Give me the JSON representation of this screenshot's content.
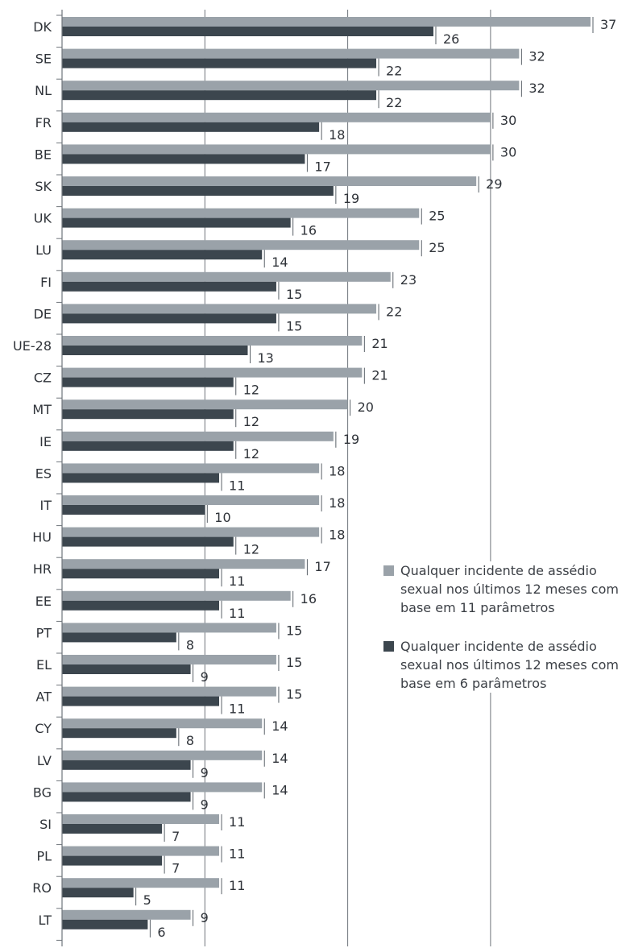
{
  "chart_data": {
    "type": "bar",
    "orientation": "horizontal",
    "categories": [
      "DK",
      "SE",
      "NL",
      "FR",
      "BE",
      "SK",
      "UK",
      "LU",
      "FI",
      "DE",
      "UE-28",
      "CZ",
      "MT",
      "IE",
      "ES",
      "IT",
      "HU",
      "HR",
      "EE",
      "PT",
      "EL",
      "AT",
      "CY",
      "LV",
      "BG",
      "SI",
      "PL",
      "RO",
      "LT"
    ],
    "series": [
      {
        "name": "Qualquer incidente de assédio sexual nos últimos 12 meses com base em 11 parâmetros",
        "color": "#9aa2a9",
        "values": [
          37,
          32,
          32,
          30,
          30,
          29,
          25,
          25,
          23,
          22,
          21,
          21,
          20,
          19,
          18,
          18,
          18,
          17,
          16,
          15,
          15,
          15,
          14,
          14,
          14,
          11,
          11,
          11,
          9
        ]
      },
      {
        "name": "Qualquer incidente de assédio sexual nos últimos 12 meses com base em 6 parâmetros",
        "color": "#3c464e",
        "values": [
          26,
          22,
          22,
          18,
          17,
          19,
          16,
          14,
          15,
          15,
          13,
          12,
          12,
          12,
          11,
          10,
          12,
          11,
          11,
          8,
          9,
          11,
          8,
          9,
          9,
          7,
          7,
          5,
          6
        ]
      }
    ],
    "xlim": [
      0,
      40
    ],
    "grid": true,
    "legend_position": "right"
  }
}
